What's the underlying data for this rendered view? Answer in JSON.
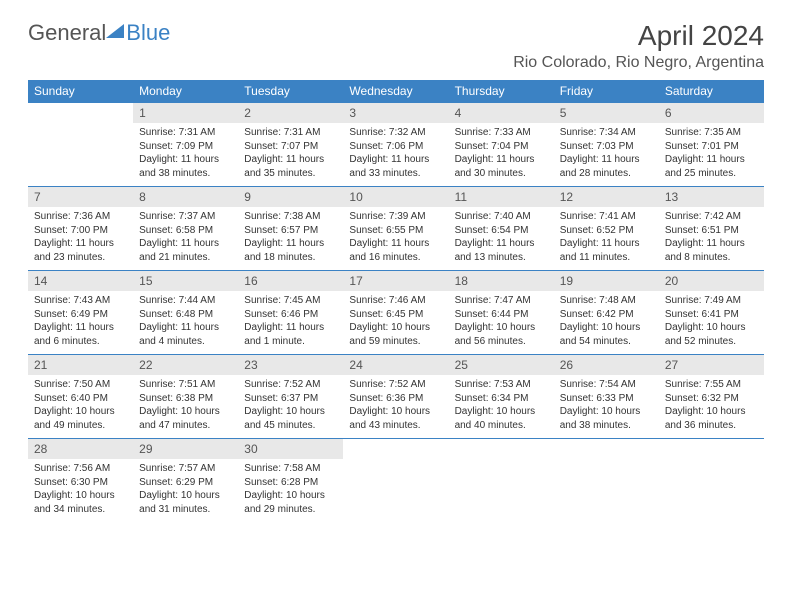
{
  "logo": {
    "text1": "General",
    "text2": "Blue"
  },
  "title": "April 2024",
  "location": "Rio Colorado, Rio Negro, Argentina",
  "colors": {
    "header_bg": "#3b82c4",
    "header_text": "#ffffff",
    "daynum_bg": "#e8e8e8",
    "border": "#3b82c4",
    "page_bg": "#ffffff",
    "body_text": "#333333"
  },
  "weekdays": [
    "Sunday",
    "Monday",
    "Tuesday",
    "Wednesday",
    "Thursday",
    "Friday",
    "Saturday"
  ],
  "weeks": [
    [
      {
        "day": "",
        "sunrise": "",
        "sunset": "",
        "daylight": "",
        "empty": true
      },
      {
        "day": "1",
        "sunrise": "Sunrise: 7:31 AM",
        "sunset": "Sunset: 7:09 PM",
        "daylight": "Daylight: 11 hours and 38 minutes."
      },
      {
        "day": "2",
        "sunrise": "Sunrise: 7:31 AM",
        "sunset": "Sunset: 7:07 PM",
        "daylight": "Daylight: 11 hours and 35 minutes."
      },
      {
        "day": "3",
        "sunrise": "Sunrise: 7:32 AM",
        "sunset": "Sunset: 7:06 PM",
        "daylight": "Daylight: 11 hours and 33 minutes."
      },
      {
        "day": "4",
        "sunrise": "Sunrise: 7:33 AM",
        "sunset": "Sunset: 7:04 PM",
        "daylight": "Daylight: 11 hours and 30 minutes."
      },
      {
        "day": "5",
        "sunrise": "Sunrise: 7:34 AM",
        "sunset": "Sunset: 7:03 PM",
        "daylight": "Daylight: 11 hours and 28 minutes."
      },
      {
        "day": "6",
        "sunrise": "Sunrise: 7:35 AM",
        "sunset": "Sunset: 7:01 PM",
        "daylight": "Daylight: 11 hours and 25 minutes."
      }
    ],
    [
      {
        "day": "7",
        "sunrise": "Sunrise: 7:36 AM",
        "sunset": "Sunset: 7:00 PM",
        "daylight": "Daylight: 11 hours and 23 minutes."
      },
      {
        "day": "8",
        "sunrise": "Sunrise: 7:37 AM",
        "sunset": "Sunset: 6:58 PM",
        "daylight": "Daylight: 11 hours and 21 minutes."
      },
      {
        "day": "9",
        "sunrise": "Sunrise: 7:38 AM",
        "sunset": "Sunset: 6:57 PM",
        "daylight": "Daylight: 11 hours and 18 minutes."
      },
      {
        "day": "10",
        "sunrise": "Sunrise: 7:39 AM",
        "sunset": "Sunset: 6:55 PM",
        "daylight": "Daylight: 11 hours and 16 minutes."
      },
      {
        "day": "11",
        "sunrise": "Sunrise: 7:40 AM",
        "sunset": "Sunset: 6:54 PM",
        "daylight": "Daylight: 11 hours and 13 minutes."
      },
      {
        "day": "12",
        "sunrise": "Sunrise: 7:41 AM",
        "sunset": "Sunset: 6:52 PM",
        "daylight": "Daylight: 11 hours and 11 minutes."
      },
      {
        "day": "13",
        "sunrise": "Sunrise: 7:42 AM",
        "sunset": "Sunset: 6:51 PM",
        "daylight": "Daylight: 11 hours and 8 minutes."
      }
    ],
    [
      {
        "day": "14",
        "sunrise": "Sunrise: 7:43 AM",
        "sunset": "Sunset: 6:49 PM",
        "daylight": "Daylight: 11 hours and 6 minutes."
      },
      {
        "day": "15",
        "sunrise": "Sunrise: 7:44 AM",
        "sunset": "Sunset: 6:48 PM",
        "daylight": "Daylight: 11 hours and 4 minutes."
      },
      {
        "day": "16",
        "sunrise": "Sunrise: 7:45 AM",
        "sunset": "Sunset: 6:46 PM",
        "daylight": "Daylight: 11 hours and 1 minute."
      },
      {
        "day": "17",
        "sunrise": "Sunrise: 7:46 AM",
        "sunset": "Sunset: 6:45 PM",
        "daylight": "Daylight: 10 hours and 59 minutes."
      },
      {
        "day": "18",
        "sunrise": "Sunrise: 7:47 AM",
        "sunset": "Sunset: 6:44 PM",
        "daylight": "Daylight: 10 hours and 56 minutes."
      },
      {
        "day": "19",
        "sunrise": "Sunrise: 7:48 AM",
        "sunset": "Sunset: 6:42 PM",
        "daylight": "Daylight: 10 hours and 54 minutes."
      },
      {
        "day": "20",
        "sunrise": "Sunrise: 7:49 AM",
        "sunset": "Sunset: 6:41 PM",
        "daylight": "Daylight: 10 hours and 52 minutes."
      }
    ],
    [
      {
        "day": "21",
        "sunrise": "Sunrise: 7:50 AM",
        "sunset": "Sunset: 6:40 PM",
        "daylight": "Daylight: 10 hours and 49 minutes."
      },
      {
        "day": "22",
        "sunrise": "Sunrise: 7:51 AM",
        "sunset": "Sunset: 6:38 PM",
        "daylight": "Daylight: 10 hours and 47 minutes."
      },
      {
        "day": "23",
        "sunrise": "Sunrise: 7:52 AM",
        "sunset": "Sunset: 6:37 PM",
        "daylight": "Daylight: 10 hours and 45 minutes."
      },
      {
        "day": "24",
        "sunrise": "Sunrise: 7:52 AM",
        "sunset": "Sunset: 6:36 PM",
        "daylight": "Daylight: 10 hours and 43 minutes."
      },
      {
        "day": "25",
        "sunrise": "Sunrise: 7:53 AM",
        "sunset": "Sunset: 6:34 PM",
        "daylight": "Daylight: 10 hours and 40 minutes."
      },
      {
        "day": "26",
        "sunrise": "Sunrise: 7:54 AM",
        "sunset": "Sunset: 6:33 PM",
        "daylight": "Daylight: 10 hours and 38 minutes."
      },
      {
        "day": "27",
        "sunrise": "Sunrise: 7:55 AM",
        "sunset": "Sunset: 6:32 PM",
        "daylight": "Daylight: 10 hours and 36 minutes."
      }
    ],
    [
      {
        "day": "28",
        "sunrise": "Sunrise: 7:56 AM",
        "sunset": "Sunset: 6:30 PM",
        "daylight": "Daylight: 10 hours and 34 minutes."
      },
      {
        "day": "29",
        "sunrise": "Sunrise: 7:57 AM",
        "sunset": "Sunset: 6:29 PM",
        "daylight": "Daylight: 10 hours and 31 minutes."
      },
      {
        "day": "30",
        "sunrise": "Sunrise: 7:58 AM",
        "sunset": "Sunset: 6:28 PM",
        "daylight": "Daylight: 10 hours and 29 minutes."
      },
      {
        "day": "",
        "sunrise": "",
        "sunset": "",
        "daylight": "",
        "empty": true
      },
      {
        "day": "",
        "sunrise": "",
        "sunset": "",
        "daylight": "",
        "empty": true
      },
      {
        "day": "",
        "sunrise": "",
        "sunset": "",
        "daylight": "",
        "empty": true
      },
      {
        "day": "",
        "sunrise": "",
        "sunset": "",
        "daylight": "",
        "empty": true
      }
    ]
  ]
}
